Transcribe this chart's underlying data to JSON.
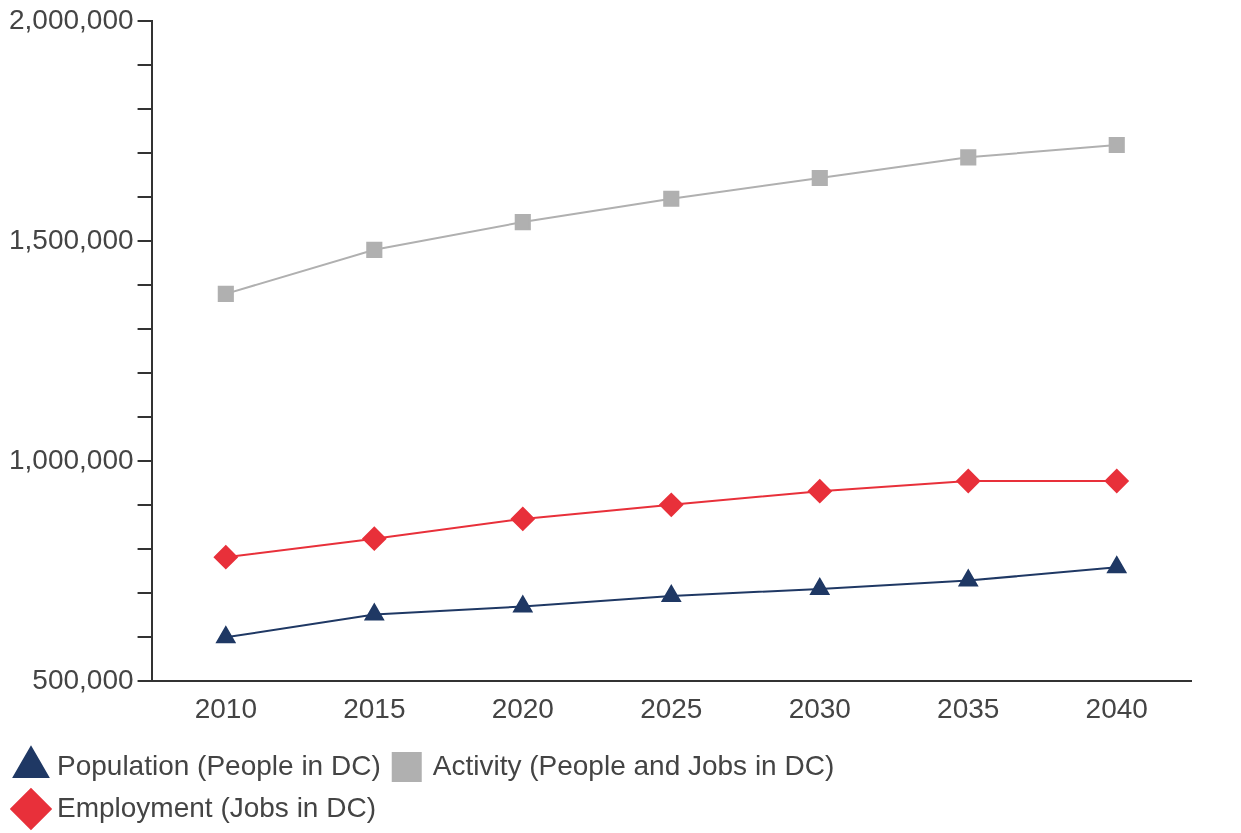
{
  "chart_data": {
    "type": "line",
    "categories": [
      "2010",
      "2015",
      "2020",
      "2025",
      "2030",
      "2035",
      "2040"
    ],
    "series": [
      {
        "name": "Population (People in DC)",
        "color": "#1f3864",
        "marker": "triangle",
        "values": [
          600000,
          652000,
          670000,
          694000,
          710000,
          729000,
          759000
        ]
      },
      {
        "name": "Activity (People and Jobs in DC)",
        "color": "#b0b0b0",
        "marker": "square",
        "values": [
          1380000,
          1480000,
          1543000,
          1596000,
          1643000,
          1690000,
          1718000
        ]
      },
      {
        "name": "Employment (Jobs in DC)",
        "color": "#e8303a",
        "marker": "diamond",
        "values": [
          782000,
          824000,
          869000,
          901000,
          932000,
          955000,
          955000
        ]
      }
    ],
    "ylim": [
      500000,
      2000000
    ],
    "yticks": [
      "500,000",
      {
        "value": 600000,
        "label": null
      },
      {
        "value": 700000,
        "label": null
      },
      {
        "value": 800000,
        "label": null
      },
      {
        "value": 900000,
        "label": null
      },
      {
        "value": 1000000,
        "label": "1,000,000"
      },
      {
        "value": 1100000,
        "label": null
      },
      {
        "value": 1200000,
        "label": null
      },
      {
        "value": 1300000,
        "label": null
      },
      {
        "value": 1400000,
        "label": null
      },
      {
        "value": 1500000,
        "label": "1,500,000"
      },
      {
        "value": 1600000,
        "label": null
      },
      {
        "value": 1700000,
        "label": null
      },
      {
        "value": 1800000,
        "label": null
      },
      {
        "value": 1900000,
        "label": null
      },
      {
        "value": 2000000,
        "label": "2,000,000"
      }
    ],
    "grid": false,
    "legend": "bottom",
    "line_style": "solid"
  }
}
